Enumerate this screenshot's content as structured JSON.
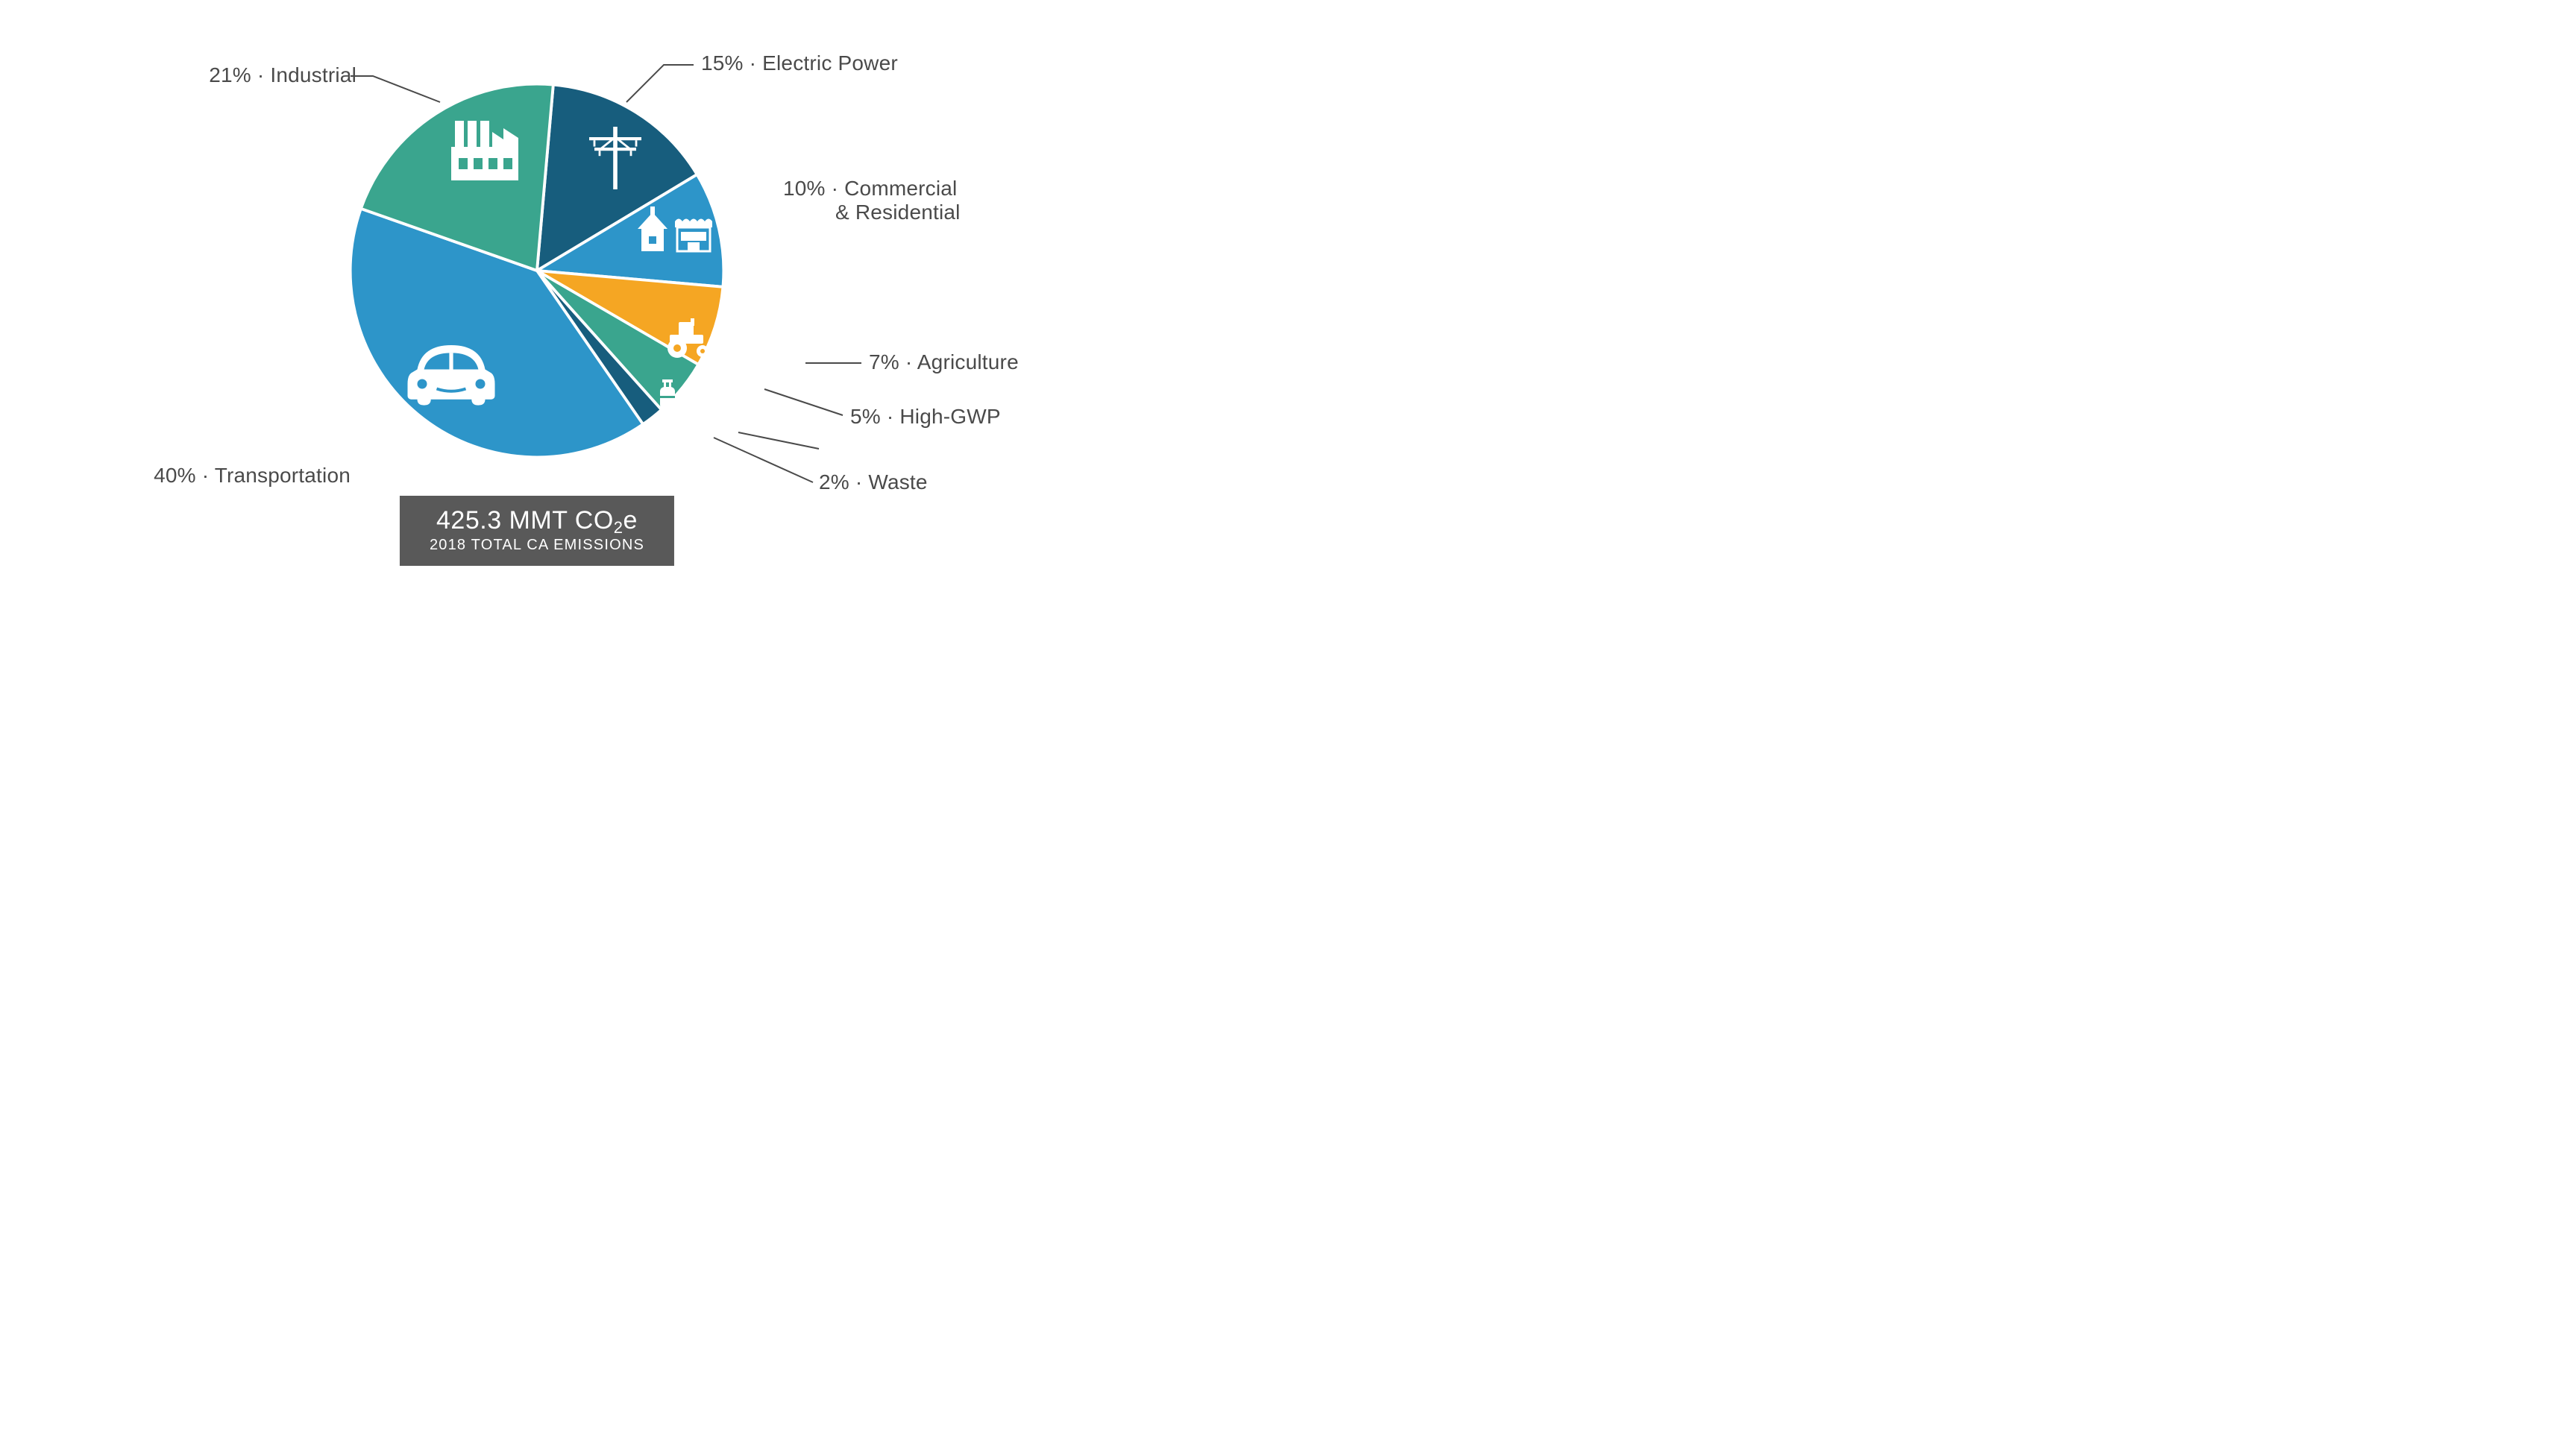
{
  "chart": {
    "type": "pie",
    "radius": 260,
    "stroke_color": "#ffffff",
    "stroke_width": 4,
    "background_color": "#ffffff",
    "label_color": "#4a4a4a",
    "label_fontsize": 28,
    "start_angle_deg": -85,
    "slices": [
      {
        "label": "Electric Power",
        "value": 15,
        "color": "#175d7d",
        "icon": "power-pole-icon"
      },
      {
        "label": "Commercial & Residential",
        "value": 10,
        "color": "#2d95c9",
        "icon": "house-store-icon"
      },
      {
        "label": "Agriculture",
        "value": 7,
        "color": "#f5a623",
        "icon": "tractor-icon"
      },
      {
        "label": "High-GWP",
        "value": 5,
        "color": "#3aa58e",
        "icon": "gas-cylinder-icon"
      },
      {
        "label": "Waste",
        "value": 2,
        "color": "#175d7d",
        "icon": null
      },
      {
        "label": "Transportation",
        "value": 40,
        "color": "#2d95c9",
        "icon": "car-icon"
      },
      {
        "label": "Industrial",
        "value": 21,
        "color": "#3aa58e",
        "icon": "factory-icon"
      }
    ]
  },
  "labels": {
    "electric": "15% · Electric Power",
    "commercial1": "10% · Commercial",
    "commercial2": "& Residential",
    "agriculture": "7% · Agriculture",
    "highgwp": "5% · High-GWP",
    "waste": "2% · Waste",
    "transport": "40% · Transportation",
    "industrial": "21% · Industrial"
  },
  "footer": {
    "main_pre": "425.3 MMT CO",
    "main_sub": "2",
    "main_post": "e",
    "sub": "2018 TOTAL CA EMISSIONS",
    "bg_color": "#595959",
    "text_color": "#ffffff"
  }
}
